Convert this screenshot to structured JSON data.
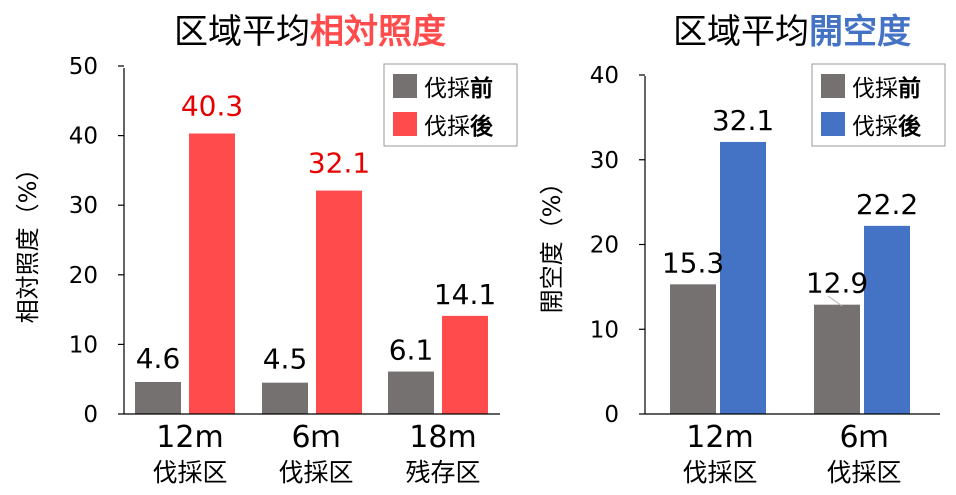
{
  "colors": {
    "before": "#767171",
    "after_light": "#ff4b4b",
    "after_open": "#4472c4",
    "axis": "#000000",
    "highlight_red": "#ff4b4b",
    "highlight_blue": "#4472c4",
    "label_red": "#e60000"
  },
  "chart_data": [
    {
      "type": "bar",
      "title_plain": "区域平均",
      "title_emph": "相対照度",
      "ylabel": "相対照度（%）",
      "ylim": [
        0,
        50
      ],
      "yticks": [
        "0",
        "10",
        "20",
        "30",
        "40",
        "50"
      ],
      "categories": [
        {
          "line1": "12m",
          "line2": "伐採区"
        },
        {
          "line1": "6ｍ",
          "line2": "伐採区"
        },
        {
          "line1": "18m",
          "line2": "残存区"
        }
      ],
      "series": [
        {
          "name": "伐採前",
          "name_plain": "伐採",
          "name_bold": "前",
          "values": [
            4.6,
            4.5,
            6.1
          ],
          "labels": [
            "4.6",
            "4.5",
            "6.1"
          ]
        },
        {
          "name": "伐採後",
          "name_plain": "伐採",
          "name_bold": "後",
          "values": [
            40.3,
            32.1,
            14.1
          ],
          "labels": [
            "40.3",
            "32.1",
            "14.1"
          ]
        }
      ],
      "legend": "top-right"
    },
    {
      "type": "bar",
      "title_plain": "区域平均",
      "title_emph": "開空度",
      "ylabel": "開空度（%）",
      "ylim": [
        0,
        40
      ],
      "yticks": [
        "0",
        "10",
        "20",
        "30",
        "40"
      ],
      "categories": [
        {
          "line1": "12m",
          "line2": "伐採区"
        },
        {
          "line1": "6ｍ",
          "line2": "伐採区"
        }
      ],
      "series": [
        {
          "name": "伐採前",
          "name_plain": "伐採",
          "name_bold": "前",
          "values": [
            15.3,
            12.9
          ],
          "labels": [
            "15.3",
            "12.9"
          ]
        },
        {
          "name": "伐採後",
          "name_plain": "伐採",
          "name_bold": "後",
          "values": [
            32.1,
            22.2
          ],
          "labels": [
            "32.1",
            "22.2"
          ]
        }
      ],
      "legend": "top-right"
    }
  ]
}
